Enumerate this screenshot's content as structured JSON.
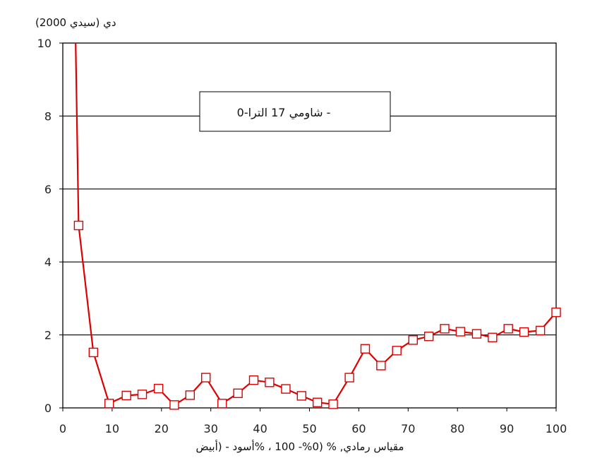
{
  "chart_data": {
    "type": "line",
    "title": "",
    "ylabel": "دي (سيدي 2000)",
    "xlabel": "مقياس رمادي,           % (0%- 100 ، %أسود -          (أبيض",
    "xlim": [
      0,
      100
    ],
    "ylim": [
      0,
      10
    ],
    "x_ticks": [
      0,
      10,
      20,
      30,
      40,
      50,
      60,
      70,
      80,
      90,
      100
    ],
    "y_ticks": [
      0,
      2,
      4,
      6,
      8,
      10
    ],
    "grid": {
      "horizontal": true,
      "vertical": false
    },
    "legend": {
      "position": "top-center",
      "text": "شاومي 17 الترا-0  -"
    },
    "series": [
      {
        "name": "شاومي 17 الترا-0",
        "color": "#dd0000",
        "marker": "open-square",
        "x": [
          2.6,
          3.2,
          6.2,
          9.4,
          12.9,
          16.1,
          19.4,
          22.6,
          25.8,
          29.0,
          32.3,
          35.5,
          38.7,
          41.9,
          45.2,
          48.4,
          51.6,
          54.8,
          58.1,
          61.3,
          64.5,
          67.7,
          71.0,
          74.2,
          77.4,
          80.6,
          83.9,
          87.1,
          90.3,
          93.5,
          96.8,
          100.0
        ],
        "y": [
          10.0,
          5.0,
          1.52,
          0.12,
          0.34,
          0.37,
          0.53,
          0.08,
          0.35,
          0.83,
          0.12,
          0.4,
          0.76,
          0.7,
          0.52,
          0.33,
          0.15,
          0.1,
          0.83,
          1.62,
          1.16,
          1.57,
          1.86,
          1.96,
          2.17,
          2.09,
          2.03,
          1.93,
          2.17,
          2.08,
          2.12,
          2.62
        ],
        "markers_from_index": 1
      }
    ]
  }
}
